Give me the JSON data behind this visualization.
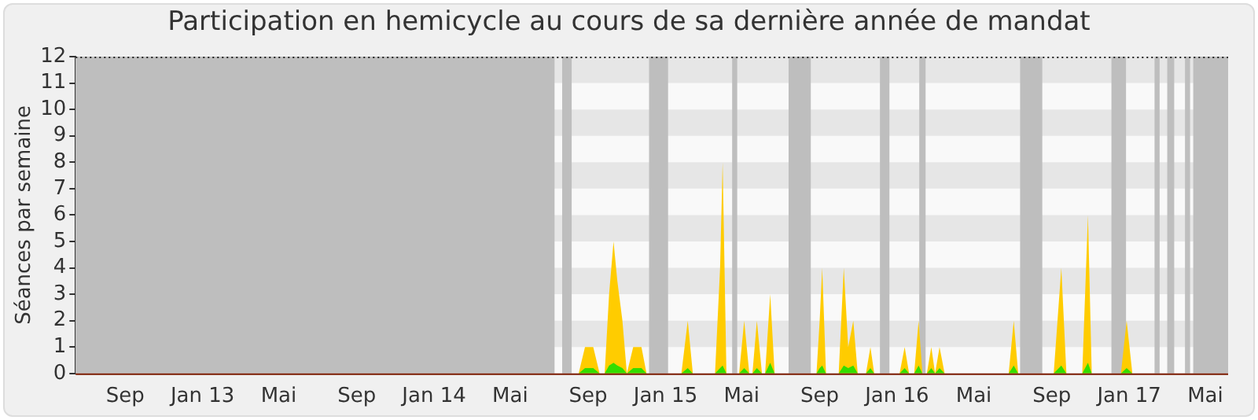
{
  "chart_data": {
    "type": "area",
    "title": "Participation en hemicycle au cours de sa dernière année de mandat",
    "ylabel": "Séances par semaine",
    "x": [
      "2012-06-15",
      "2014-08-17",
      "2014-08-27",
      "2014-09-09",
      "2014-09-19",
      "2014-09-27",
      "2014-10-04",
      "2014-10-11",
      "2014-10-17",
      "2014-10-25",
      "2014-11-01",
      "2014-11-11",
      "2014-11-24",
      "2014-12-02",
      "2015-01-26",
      "2015-02-05",
      "2015-02-13",
      "2015-03-20",
      "2015-03-28",
      "2015-04-01",
      "2015-04-07",
      "2015-04-27",
      "2015-05-05",
      "2015-05-13",
      "2015-05-18",
      "2015-05-25",
      "2015-06-02",
      "2015-06-07",
      "2015-06-15",
      "2015-06-22",
      "2015-08-27",
      "2015-09-01",
      "2015-09-05",
      "2015-09-11",
      "2015-10-01",
      "2015-10-09",
      "2015-10-16",
      "2015-10-24",
      "2015-10-31",
      "2015-11-13",
      "2015-11-20",
      "2015-11-26",
      "2016-01-05",
      "2016-01-13",
      "2016-01-20",
      "2016-01-28",
      "2016-02-04",
      "2016-02-10",
      "2016-02-17",
      "2016-02-24",
      "2016-03-01",
      "2016-03-08",
      "2016-03-16",
      "2016-06-25",
      "2016-07-03",
      "2016-07-10",
      "2016-09-04",
      "2016-09-16",
      "2016-09-24",
      "2016-10-19",
      "2016-10-28",
      "2016-11-03",
      "2016-12-19",
      "2016-12-28",
      "2017-01-06",
      "2017-06-06"
    ],
    "series": [
      {
        "color": "#ffcc00",
        "values": [
          0,
          0,
          1,
          1,
          0,
          0,
          3,
          5,
          3.5,
          2,
          0,
          1,
          1,
          0,
          0,
          2,
          0,
          0,
          4,
          8,
          0,
          0,
          2,
          0,
          0,
          2,
          0,
          0,
          3,
          0,
          0,
          2,
          4,
          0,
          0,
          4,
          1,
          2,
          0,
          0,
          1,
          0,
          0,
          1,
          0,
          0,
          2,
          0,
          0,
          1,
          0,
          1,
          0,
          0,
          2,
          0,
          0,
          4,
          0,
          0,
          6,
          0,
          0,
          2,
          0,
          0
        ]
      },
      {
        "color": "#33dd00",
        "values": [
          0,
          0,
          0.2,
          0.2,
          0,
          0,
          0.3,
          0.4,
          0.3,
          0.2,
          0,
          0.2,
          0.2,
          0,
          0,
          0.2,
          0,
          0,
          0.2,
          0.3,
          0,
          0,
          0.2,
          0,
          0,
          0.2,
          0,
          0,
          0.4,
          0,
          0,
          0.2,
          0.3,
          0,
          0,
          0.3,
          0.2,
          0.3,
          0,
          0,
          0.2,
          0,
          0,
          0.2,
          0,
          0,
          0.3,
          0,
          0,
          0.2,
          0,
          0.2,
          0,
          0,
          0.3,
          0,
          0,
          0.3,
          0,
          0,
          0.4,
          0,
          0,
          0.2,
          0,
          0
        ]
      }
    ],
    "xlim": [
      "2012-06-15",
      "2017-06-06"
    ],
    "xticks": [
      {
        "value": "2012-09-01",
        "label": "Sep"
      },
      {
        "value": "2013-01-01",
        "label": "Jan 13"
      },
      {
        "value": "2013-05-01",
        "label": "Mai"
      },
      {
        "value": "2013-09-01",
        "label": "Sep"
      },
      {
        "value": "2014-01-01",
        "label": "Jan 14"
      },
      {
        "value": "2014-05-01",
        "label": "Mai"
      },
      {
        "value": "2014-09-01",
        "label": "Sep"
      },
      {
        "value": "2015-01-01",
        "label": "Jan 15"
      },
      {
        "value": "2015-05-01",
        "label": "Mai"
      },
      {
        "value": "2015-09-01",
        "label": "Sep"
      },
      {
        "value": "2016-01-01",
        "label": "Jan 16"
      },
      {
        "value": "2016-05-01",
        "label": "Mai"
      },
      {
        "value": "2016-09-01",
        "label": "Sep"
      },
      {
        "value": "2017-01-01",
        "label": "Jan 17"
      },
      {
        "value": "2017-05-01",
        "label": "Mai"
      }
    ],
    "ylim": [
      0,
      12
    ],
    "yticks": [
      0,
      1,
      2,
      3,
      4,
      5,
      6,
      7,
      8,
      9,
      10,
      11,
      12
    ],
    "bands": [
      {
        "axis": "y",
        "from": 1,
        "to": 2,
        "color": "#e6e6e6"
      },
      {
        "axis": "y",
        "from": 3,
        "to": 4,
        "color": "#e6e6e6"
      },
      {
        "axis": "y",
        "from": 5,
        "to": 6,
        "color": "#e6e6e6"
      },
      {
        "axis": "y",
        "from": 7,
        "to": 8,
        "color": "#e6e6e6"
      },
      {
        "axis": "y",
        "from": 9,
        "to": 10,
        "color": "#e6e6e6"
      },
      {
        "axis": "y",
        "from": 11,
        "to": 12,
        "color": "#e6e6e6"
      },
      {
        "axis": "x",
        "from": "2012-06-15",
        "to": "2014-07-10",
        "color": "#bebebe"
      },
      {
        "axis": "x",
        "from": "2014-07-22",
        "to": "2014-08-06",
        "color": "#bebebe"
      },
      {
        "axis": "x",
        "from": "2014-12-06",
        "to": "2015-01-05",
        "color": "#bebebe"
      },
      {
        "axis": "x",
        "from": "2015-04-16",
        "to": "2015-04-24",
        "color": "#bebebe"
      },
      {
        "axis": "x",
        "from": "2015-07-14",
        "to": "2015-08-18",
        "color": "#bebebe"
      },
      {
        "axis": "x",
        "from": "2015-12-05",
        "to": "2015-12-20",
        "color": "#bebebe"
      },
      {
        "axis": "x",
        "from": "2016-02-05",
        "to": "2016-02-15",
        "color": "#bebebe"
      },
      {
        "axis": "x",
        "from": "2016-07-13",
        "to": "2016-08-17",
        "color": "#bebebe"
      },
      {
        "axis": "x",
        "from": "2016-12-04",
        "to": "2016-12-27",
        "color": "#bebebe"
      },
      {
        "axis": "x",
        "from": "2017-02-10",
        "to": "2017-02-18",
        "color": "#bebebe"
      },
      {
        "axis": "x",
        "from": "2017-03-02",
        "to": "2017-03-13",
        "color": "#bebebe"
      },
      {
        "axis": "x",
        "from": "2017-03-30",
        "to": "2017-04-07",
        "color": "#bebebe"
      },
      {
        "axis": "x",
        "from": "2017-04-12",
        "to": "2017-06-06",
        "color": "#bebebe"
      }
    ]
  }
}
